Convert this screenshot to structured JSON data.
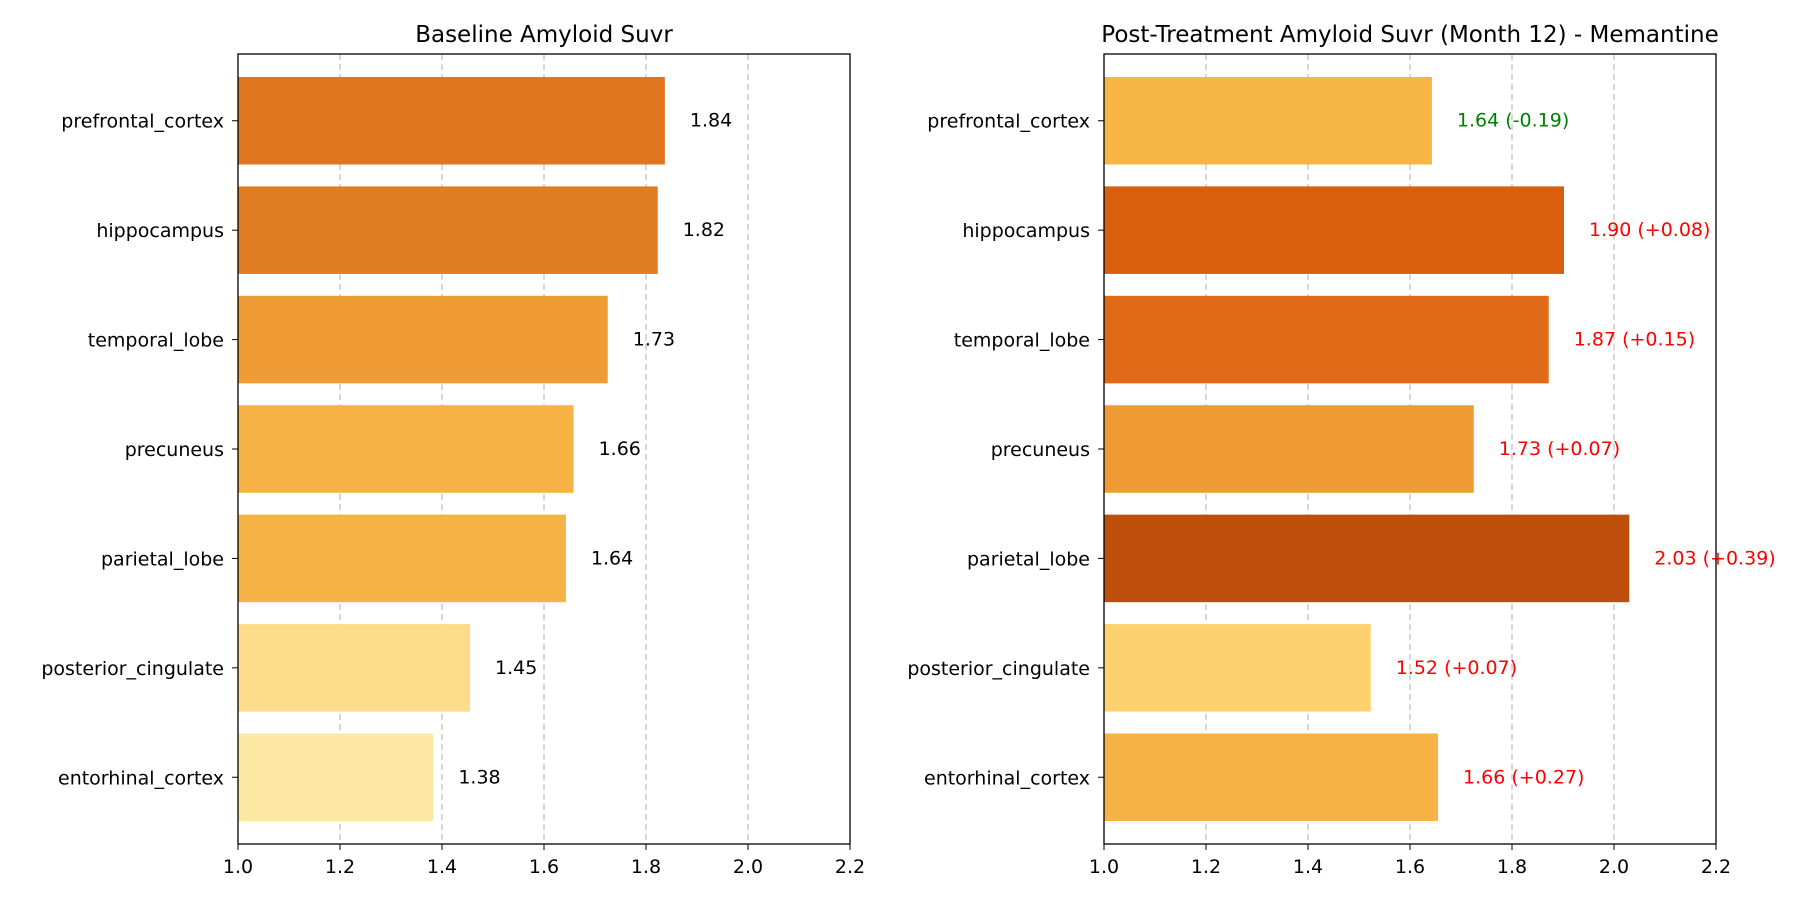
{
  "chart_data": [
    {
      "type": "bar",
      "orientation": "horizontal",
      "title": "Baseline Amyloid Suvr",
      "xlabel": "",
      "ylabel": "",
      "xlim": [
        1.0,
        2.2
      ],
      "xticks": [
        "1.0",
        "1.2",
        "1.4",
        "1.6",
        "1.8",
        "2.0",
        "2.2"
      ],
      "grid": "x-dashed",
      "categories": [
        "prefrontal_cortex",
        "hippocampus",
        "temporal_lobe",
        "precuneus",
        "parietal_lobe",
        "posterior_cingulate",
        "entorhinal_cortex"
      ],
      "values": [
        1.837,
        1.823,
        1.725,
        1.658,
        1.643,
        1.455,
        1.383
      ],
      "bar_colors": [
        "#e0761f",
        "#e07c22",
        "#ef9b36",
        "#f6b245",
        "#f6b245",
        "#fddc8a",
        "#fde8a3"
      ],
      "labels": [
        "1.84",
        "1.82",
        "1.73",
        "1.66",
        "1.64",
        "1.45",
        "1.38"
      ],
      "label_colors": [
        "#000000",
        "#000000",
        "#000000",
        "#000000",
        "#000000",
        "#000000",
        "#000000"
      ]
    },
    {
      "type": "bar",
      "orientation": "horizontal",
      "title": "Post-Treatment Amyloid Suvr (Month 12) - Memantine",
      "xlabel": "",
      "ylabel": "",
      "xlim": [
        1.0,
        2.2
      ],
      "xticks": [
        "1.0",
        "1.2",
        "1.4",
        "1.6",
        "1.8",
        "2.0",
        "2.2"
      ],
      "grid": "x-dashed",
      "categories": [
        "prefrontal_cortex",
        "hippocampus",
        "temporal_lobe",
        "precuneus",
        "parietal_lobe",
        "posterior_cingulate",
        "entorhinal_cortex"
      ],
      "values": [
        1.643,
        1.902,
        1.872,
        1.725,
        2.03,
        1.523,
        1.655
      ],
      "bar_colors": [
        "#f7b545",
        "#d95f0e",
        "#e06a17",
        "#ef9b36",
        "#bd4e0b",
        "#fed16f",
        "#f6b245"
      ],
      "labels": [
        "1.64 (-0.19)",
        "1.90 (+0.08)",
        "1.87 (+0.15)",
        "1.73 (+0.07)",
        "2.03 (+0.39)",
        "1.52 (+0.07)",
        "1.66 (+0.27)"
      ],
      "label_colors": [
        "#008000",
        "#ff0000",
        "#ff0000",
        "#ff0000",
        "#ff0000",
        "#ff0000",
        "#ff0000"
      ]
    }
  ]
}
